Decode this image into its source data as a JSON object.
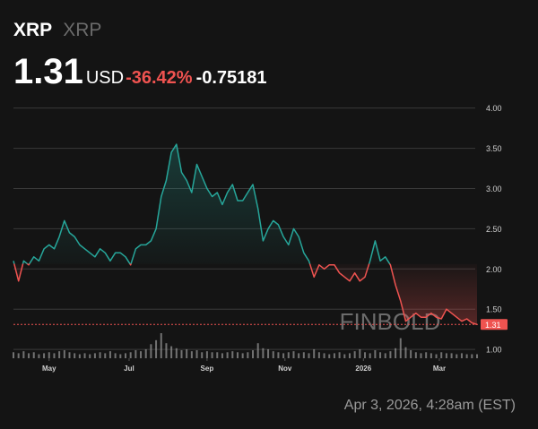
{
  "chart_data": {
    "type": "line",
    "title": "XRP",
    "subtitle": "XRP",
    "price": 1.31,
    "currency": "USD",
    "change_pct": {
      "value": -36.42,
      "label": "-36.42%"
    },
    "change": -0.75181,
    "timestamp": "Apr 3, 2026, 4:28am (EST)",
    "watermark": "FINBOLD",
    "up_color": "#26a69a",
    "down_color": "#ef5350",
    "grid": true,
    "values": [
      2.1,
      1.85,
      2.1,
      2.05,
      2.15,
      2.1,
      2.25,
      2.3,
      2.25,
      2.4,
      2.6,
      2.45,
      2.4,
      2.3,
      2.25,
      2.2,
      2.15,
      2.25,
      2.2,
      2.1,
      2.2,
      2.2,
      2.15,
      2.05,
      2.25,
      2.3,
      2.3,
      2.35,
      2.5,
      2.9,
      3.1,
      3.45,
      3.55,
      3.2,
      3.1,
      2.95,
      3.3,
      3.15,
      3.0,
      2.9,
      2.95,
      2.8,
      2.95,
      3.05,
      2.85,
      2.85,
      2.95,
      3.05,
      2.75,
      2.35,
      2.5,
      2.6,
      2.55,
      2.4,
      2.3,
      2.5,
      2.4,
      2.2,
      2.1,
      1.9,
      2.05,
      2.0,
      2.05,
      2.05,
      1.95,
      1.9,
      1.85,
      1.95,
      1.85,
      1.9,
      2.1,
      2.35,
      2.1,
      2.15,
      2.05,
      1.8,
      1.6,
      1.35,
      1.4,
      1.45,
      1.4,
      1.4,
      1.45,
      1.4,
      1.38,
      1.5,
      1.45,
      1.4,
      1.35,
      1.38,
      1.33,
      1.31
    ],
    "volume": [
      6,
      5,
      7,
      5,
      6,
      4,
      5,
      6,
      5,
      7,
      8,
      6,
      5,
      4,
      5,
      4,
      5,
      6,
      5,
      7,
      5,
      4,
      5,
      6,
      8,
      7,
      9,
      14,
      18,
      25,
      15,
      12,
      10,
      8,
      9,
      7,
      8,
      6,
      7,
      6,
      6,
      5,
      6,
      7,
      6,
      5,
      6,
      8,
      15,
      10,
      9,
      7,
      6,
      5,
      6,
      7,
      5,
      6,
      5,
      9,
      6,
      5,
      4,
      5,
      6,
      4,
      5,
      7,
      9,
      6,
      5,
      8,
      6,
      5,
      7,
      10,
      20,
      11,
      8,
      6,
      5,
      6,
      5,
      4,
      6,
      5,
      5,
      4,
      5,
      4,
      4,
      4
    ],
    "xlim": [
      0,
      91
    ],
    "xticks": [
      {
        "value": 7,
        "label": "May"
      },
      {
        "value": 22.7,
        "label": "Jul"
      },
      {
        "value": 38,
        "label": "Sep"
      },
      {
        "value": 53.3,
        "label": "Nov"
      },
      {
        "value": 68.7,
        "label": "2026"
      },
      {
        "value": 83.6,
        "label": "Mar"
      }
    ],
    "ylim": [
      0.89,
      4.23
    ],
    "yticks": [
      {
        "value": 1,
        "label": "1.00"
      },
      {
        "value": 1.5,
        "label": "1.50"
      },
      {
        "value": 2,
        "label": "2.00"
      },
      {
        "value": 2.5,
        "label": "2.50"
      },
      {
        "value": 3,
        "label": "3.00"
      },
      {
        "value": 3.5,
        "label": "3.50"
      },
      {
        "value": 4,
        "label": "4.00"
      }
    ]
  }
}
